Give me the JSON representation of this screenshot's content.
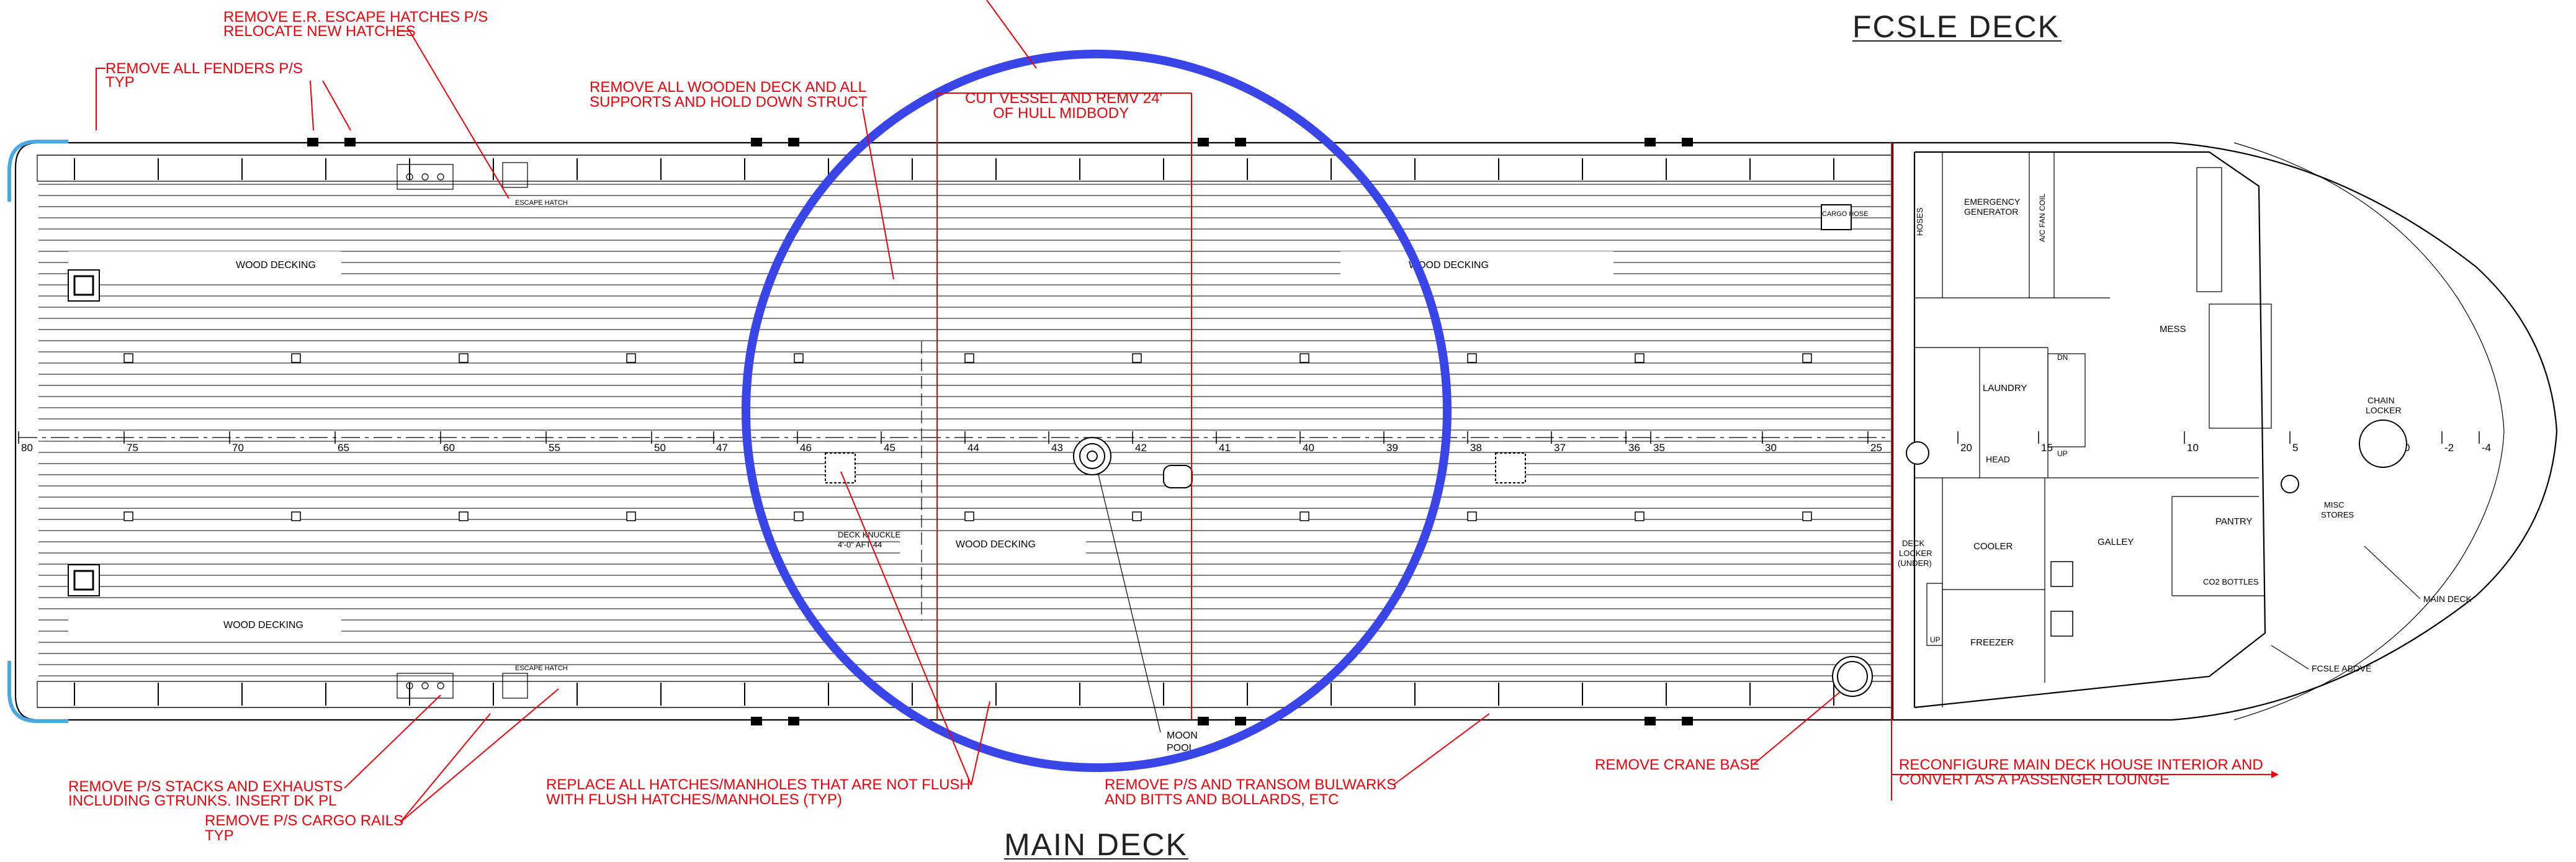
{
  "titles": {
    "fcsle_deck": "FCSLE DECK",
    "main_deck": "MAIN DECK"
  },
  "notes": {
    "remove_escape_hatches_l1": "REMOVE E.R. ESCAPE HATCHES P/S",
    "remove_escape_hatches_l2": "RELOCATE NEW HATCHES",
    "remove_fenders_l1": "REMOVE ALL FENDERS P/S",
    "remove_fenders_l2": "TYP",
    "remove_wooden_deck_l1": "REMOVE ALL WOODEN DECK AND ALL",
    "remove_wooden_deck_l2": "SUPPORTS AND HOLD DOWN STRUCT",
    "cut_vessel_l1": "CUT VESSEL AND REMV 24'",
    "cut_vessel_l2": "OF HULL MIDBODY",
    "remove_stacks_l1": "REMOVE P/S STACKS AND EXHAUSTS",
    "remove_stacks_l2": "INCLUDING GTRUNKS. INSERT DK PL",
    "remove_cargo_rails_l1": "REMOVE P/S CARGO RAILS",
    "remove_cargo_rails_l2": "TYP",
    "replace_hatches_l1": "REPLACE ALL HATCHES/MANHOLES THAT ARE NOT FLUSH",
    "replace_hatches_l2": "WITH FLUSH HATCHES/MANHOLES (TYP)",
    "remove_bulwarks_l1": "REMOVE P/S AND TRANSOM BULWARKS",
    "remove_bulwarks_l2": "AND BITTS AND BOLLARDS, ETC",
    "remove_crane_base": "REMOVE CRANE BASE",
    "reconfigure_l1": "RECONFIGURE MAIN DECK HOUSE INTERIOR AND",
    "reconfigure_l2": "CONVERT AS A PASSENGER LOUNGE"
  },
  "labels": {
    "escape_hatch_top": "ESCAPE HATCH",
    "escape_hatch_bottom": "ESCAPE HATCH",
    "wood_decking_1": "WOOD DECKING",
    "wood_decking_2": "WOOD DECKING",
    "wood_decking_3": "WOOD DECKING",
    "wood_decking_4": "WOOD DECKING",
    "deck_knuckle_l1": "DECK KNUCKLE",
    "deck_knuckle_l2": "4'-0\" AFT 44",
    "moon_pool_l1": "MOON",
    "moon_pool_l2": "POOL",
    "main_deck_lbl": "MAIN DECK",
    "fcsle_above": "FCSLE ABOVE",
    "hoses": "HOSES",
    "cargo_hose": "CARGO HOSE",
    "emergency_generator_l1": "EMERGENCY",
    "emergency_generator_l2": "GENERATOR",
    "ac_fan_coil": "A/C FAN COIL",
    "laundry": "LAUNDRY",
    "head": "HEAD",
    "cooler": "COOLER",
    "freezer": "FREEZER",
    "galley": "GALLEY",
    "pantry": "PANTRY",
    "mess": "MESS",
    "co2_bottles": "CO2 BOTTLES",
    "chain_locker_l1": "CHAIN",
    "chain_locker_l2": "LOCKER",
    "misc_stores_l1": "MISC",
    "misc_stores_l2": "STORES",
    "deck_locker_l1": "DECK",
    "deck_locker_l2": "LOCKER",
    "deck_locker_l3": "(UNDER)",
    "dn": "DN",
    "up_1": "UP",
    "up_2": "UP"
  },
  "frames": [
    "80",
    "75",
    "70",
    "65",
    "60",
    "55",
    "50",
    "47",
    "46",
    "45",
    "44",
    "43",
    "42",
    "41",
    "40",
    "39",
    "38",
    "37",
    "36",
    "35",
    "30",
    "25",
    "20",
    "15",
    "10",
    "5",
    "0",
    "-2",
    "-4"
  ],
  "colors": {
    "annotation": "#e8000b",
    "cut_circle": "#3a45e8",
    "fender": "#4aa9e0",
    "linework": "#000000"
  }
}
